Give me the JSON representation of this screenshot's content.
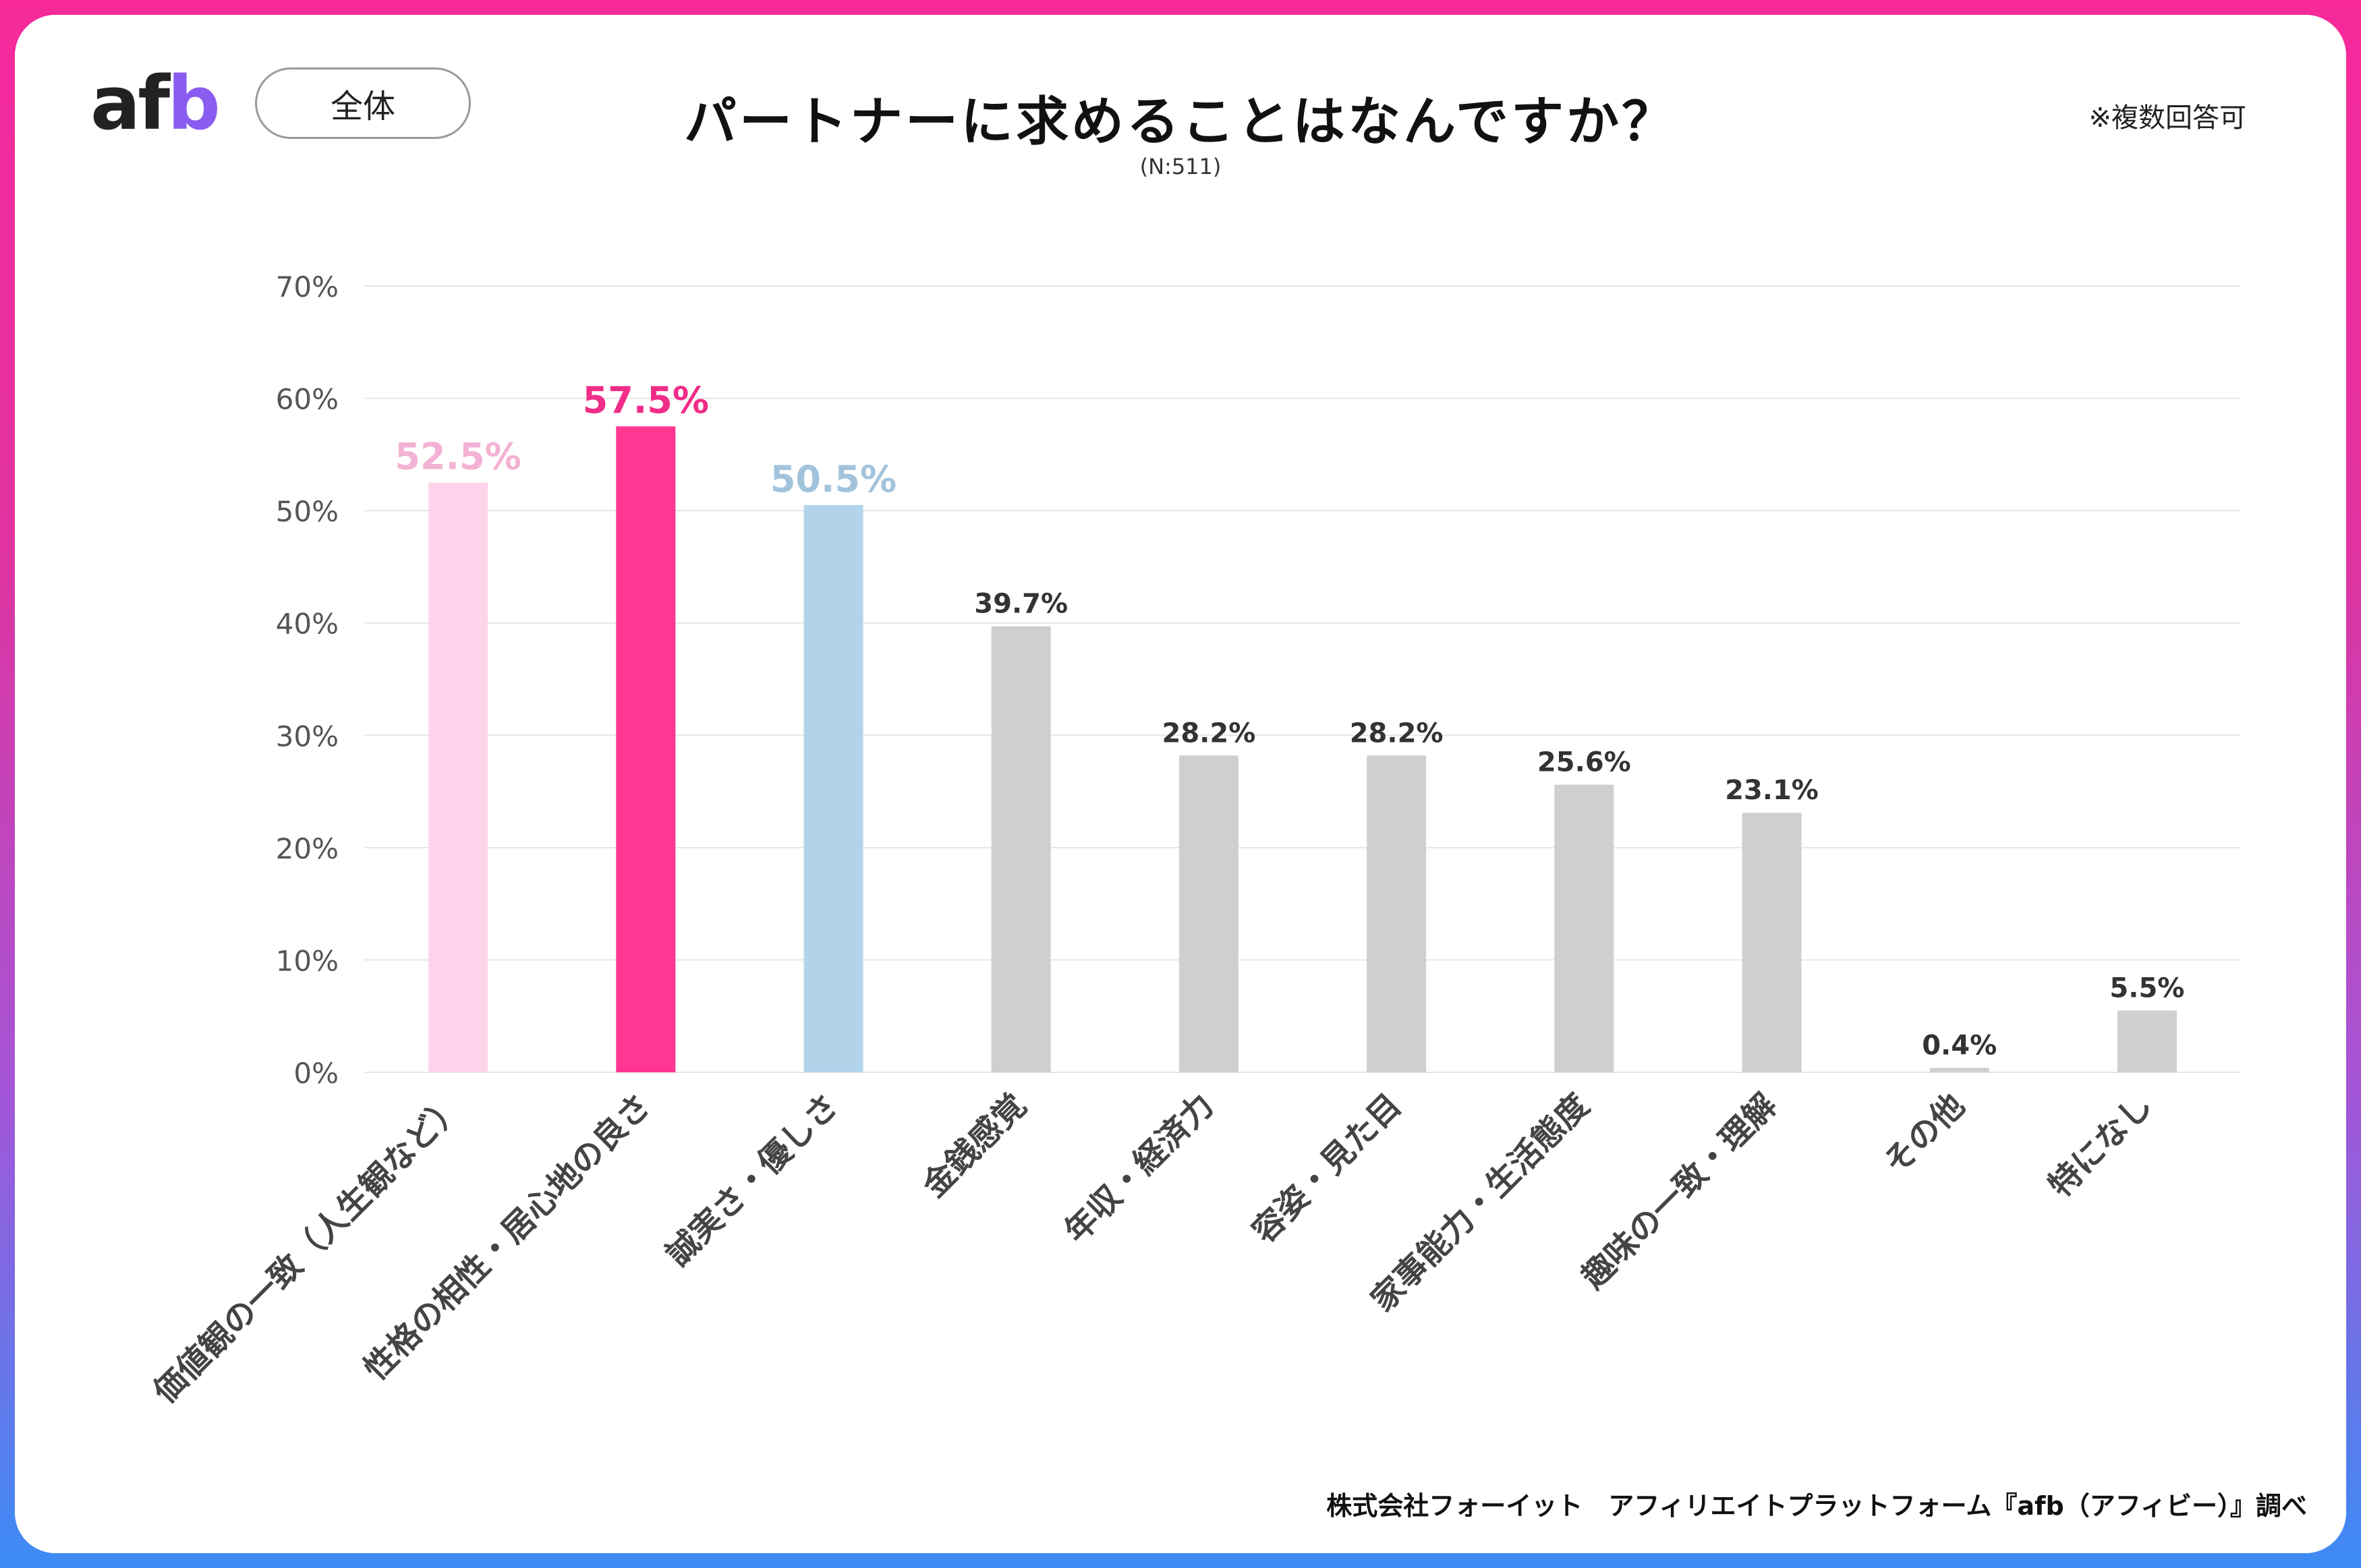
{
  "header": {
    "logo_a": "af",
    "logo_b": "b",
    "filter_label": "全体",
    "title": "パートナーに求めることはなんですか？",
    "subtitle": "(N:511)",
    "note": "※複数回答可"
  },
  "footer": {
    "credit": "株式会社フォーイット　アフィリエイトプラットフォーム『afb（アフィビー）』調べ"
  },
  "colors": {
    "highlight_1": "#ffd3ea",
    "highlight_1_label": "#f3b2d4",
    "highlight_2": "#ff3692",
    "highlight_2_label": "#f02d88",
    "highlight_3": "#b2d4ea",
    "highlight_3_label": "#a2c3dc",
    "default_bar": "#d0cfd0",
    "default_label": "#333333",
    "gridline": "#e6e6e6",
    "tick_label": "#555555",
    "category_label": "#444444"
  },
  "chart_data": {
    "type": "bar",
    "categories": [
      "価値観の一致（人生観など）",
      "性格の相性・居心地の良さ",
      "誠実さ・優しさ",
      "金銭感覚",
      "年収・経済力",
      "容姿・見た目",
      "家事能力・生活態度",
      "趣味の一致・理解",
      "その他",
      "特になし"
    ],
    "values": [
      52.5,
      57.5,
      50.5,
      39.7,
      28.2,
      28.2,
      25.6,
      23.1,
      0.4,
      5.5
    ],
    "data_labels": [
      "52.5%",
      "57.5%",
      "50.5%",
      "39.7%",
      "28.2%",
      "28.2%",
      "25.6%",
      "23.1%",
      "0.4%",
      "5.5%"
    ],
    "y_ticks": [
      "0%",
      "10%",
      "20%",
      "30%",
      "40%",
      "50%",
      "60%",
      "70%"
    ],
    "ylim": [
      0,
      70
    ],
    "grid": true,
    "legend": "none",
    "title": "パートナーに求めることはなんですか？",
    "xlabel": "",
    "ylabel": ""
  }
}
